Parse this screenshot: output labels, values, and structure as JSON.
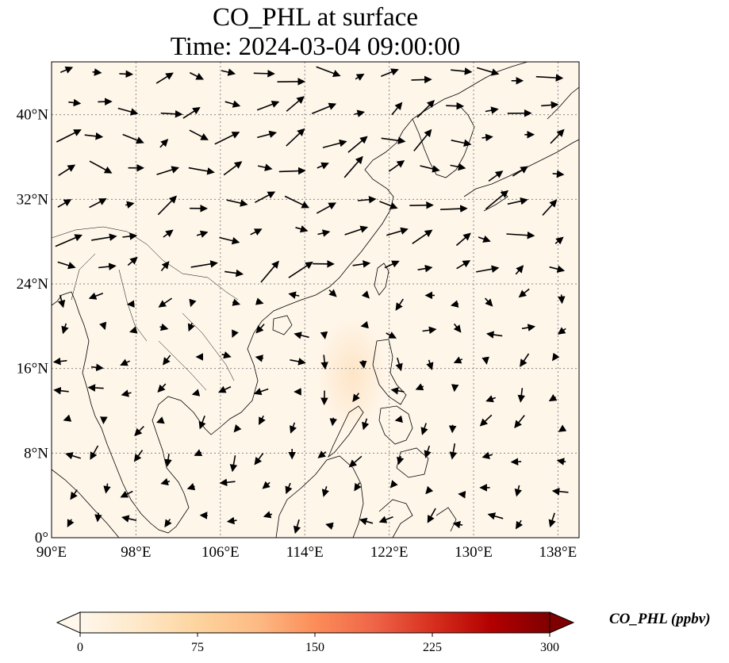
{
  "title": {
    "line1": "CO_PHL at surface",
    "line2": "Time: 2024-03-04 09:00:00"
  },
  "map": {
    "lon_range": [
      90,
      140
    ],
    "lat_range": [
      0,
      45
    ],
    "lon_ticks": [
      {
        "value": 90,
        "label": "90°E"
      },
      {
        "value": 98,
        "label": "98°E"
      },
      {
        "value": 106,
        "label": "106°E"
      },
      {
        "value": 114,
        "label": "114°E"
      },
      {
        "value": 122,
        "label": "122°E"
      },
      {
        "value": 130,
        "label": "130°E"
      },
      {
        "value": 138,
        "label": "138°E"
      }
    ],
    "lat_ticks": [
      {
        "value": 0,
        "label": "0°"
      },
      {
        "value": 8,
        "label": "8°N"
      },
      {
        "value": 16,
        "label": "16°N"
      },
      {
        "value": 24,
        "label": "24°N"
      },
      {
        "value": 32,
        "label": "32°N"
      },
      {
        "value": 40,
        "label": "40°N"
      }
    ],
    "gridlines": true,
    "background_color": "#fff6ea",
    "plume_color": "#fde3c3",
    "plume_center_lonlat": [
      118.5,
      15.5
    ]
  },
  "colorbar": {
    "label": "CO_PHL (ppbv)",
    "ticks": [
      "0",
      "75",
      "150",
      "225",
      "300"
    ],
    "tick_values": [
      0,
      75,
      150,
      225,
      300
    ],
    "range": [
      0,
      300
    ],
    "extend": "both",
    "colormap": "OrRd",
    "stops": [
      "#fff7ec",
      "#fee8c8",
      "#fdd49e",
      "#fdbb84",
      "#fc8d59",
      "#ef6548",
      "#d7301f",
      "#b30000",
      "#7f0000"
    ]
  }
}
